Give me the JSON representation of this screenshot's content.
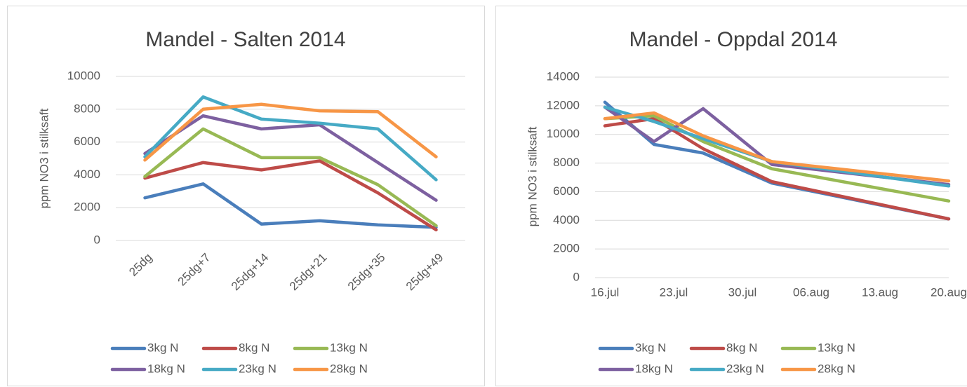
{
  "chart_data": [
    {
      "type": "line",
      "title": "Mandel - Salten 2014",
      "y_label": "ppm NO3 i stilksaft",
      "categories": [
        "25dg",
        "25dg+7",
        "25dg+14",
        "25dg+21",
        "25dg+35",
        "25dg+49"
      ],
      "series": [
        {
          "name": "3kg N",
          "color": "#4a7ebb",
          "values": [
            2600,
            3450,
            1000,
            1200,
            950,
            800
          ]
        },
        {
          "name": "8kg N",
          "color": "#be4b48",
          "values": [
            3800,
            4750,
            4300,
            4850,
            2900,
            650
          ]
        },
        {
          "name": "13kg N",
          "color": "#98b954",
          "values": [
            3900,
            6800,
            5050,
            5050,
            3400,
            900
          ]
        },
        {
          "name": "18kg N",
          "color": "#7d60a0",
          "values": [
            5300,
            7600,
            6800,
            7050,
            4750,
            2450
          ]
        },
        {
          "name": "23kg N",
          "color": "#46aac5",
          "values": [
            5100,
            8750,
            7400,
            7150,
            6800,
            3700
          ]
        },
        {
          "name": "28kg N",
          "color": "#f79646",
          "values": [
            4900,
            8000,
            8300,
            7900,
            7850,
            5100
          ]
        }
      ],
      "ylim": [
        0,
        10000
      ],
      "yticks": [
        0,
        2000,
        4000,
        6000,
        8000,
        10000
      ],
      "grid": true
    },
    {
      "type": "line",
      "title": "Mandel - Oppdal 2014",
      "y_label": "ppm NO3 i stilksaft",
      "x": [
        197,
        202,
        207,
        214,
        232
      ],
      "xlim": [
        196,
        232
      ],
      "xticks": [
        {
          "value": 197,
          "label": "16.jul"
        },
        {
          "value": 204,
          "label": "23.jul"
        },
        {
          "value": 211,
          "label": "30.jul"
        },
        {
          "value": 218,
          "label": "06.aug"
        },
        {
          "value": 225,
          "label": "13.aug"
        },
        {
          "value": 232,
          "label": "20.aug"
        }
      ],
      "series": [
        {
          "name": "3kg N",
          "color": "#4a7ebb",
          "values": [
            12250,
            9300,
            8700,
            6600,
            4100
          ]
        },
        {
          "name": "8kg N",
          "color": "#be4b48",
          "values": [
            10600,
            11100,
            9000,
            6700,
            4100
          ]
        },
        {
          "name": "13kg N",
          "color": "#98b954",
          "values": [
            11100,
            11300,
            9500,
            7600,
            5350
          ]
        },
        {
          "name": "18kg N",
          "color": "#7d60a0",
          "values": [
            11900,
            9500,
            11800,
            7900,
            6500
          ]
        },
        {
          "name": "23kg N",
          "color": "#46aac5",
          "values": [
            11900,
            10900,
            9700,
            8100,
            6400
          ]
        },
        {
          "name": "28kg N",
          "color": "#f79646",
          "values": [
            11100,
            11500,
            9900,
            8100,
            6750
          ]
        }
      ],
      "ylim": [
        0,
        14000
      ],
      "yticks": [
        0,
        2000,
        4000,
        6000,
        8000,
        10000,
        12000,
        14000
      ],
      "grid": true
    }
  ]
}
